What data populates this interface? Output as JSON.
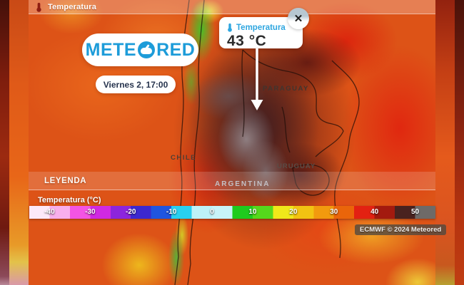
{
  "top_bar": {
    "layer_label": "Temperatura"
  },
  "brand": {
    "logo_prefix": "METE",
    "logo_suffix": "RED",
    "logo_full": "METEORED",
    "date_label": "Viernes 2, 17:00"
  },
  "tooltip": {
    "title": "Temperatura",
    "value": "43 °C",
    "close": "✕"
  },
  "map_labels": {
    "paraguay": "PARAGUAY",
    "uruguay": "URUGUAY",
    "argentina": "ARGENTINA",
    "chile": "CHILE"
  },
  "legend": {
    "header": "LEYENDA",
    "title": "Temperatura (°C)",
    "ticks": [
      "-40",
      "-30",
      "-20",
      "-10",
      "0",
      "10",
      "20",
      "30",
      "40",
      "50"
    ],
    "tick_positions": [
      5,
      15,
      25,
      35,
      45,
      55,
      65,
      75,
      85,
      95
    ],
    "colors": [
      "#fce9f8",
      "#f8aeec",
      "#f354e4",
      "#d029e2",
      "#8c25dc",
      "#3c28d0",
      "#1f55e0",
      "#28d0f0",
      "#bdf2f8",
      "#c8f4f8",
      "#1ecb1e",
      "#55d81c",
      "#f0e81a",
      "#f2c312",
      "#f29a0e",
      "#ea650a",
      "#e32112",
      "#a31a0f",
      "#49221f",
      "#6e6a68"
    ],
    "scale_range": [
      -45,
      55
    ],
    "step": 5
  },
  "attribution": {
    "text": "ECMWF © 2024 Meteored"
  },
  "theme": {
    "brand_blue": "#1d9cd9",
    "tooltip_blue": "#2ea6e0",
    "date_text_color": "#26334d",
    "hot_core_gray": "#928386",
    "dark_maroon": "#401f21"
  }
}
